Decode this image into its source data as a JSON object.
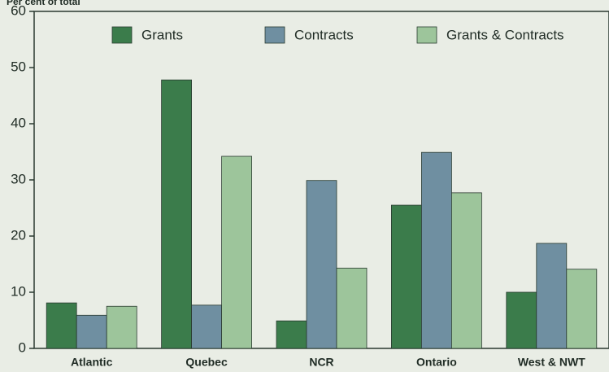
{
  "chart_data": {
    "type": "bar",
    "y_label": "Per cent of total",
    "categories": [
      "Atlantic",
      "Quebec",
      "NCR",
      "Ontario",
      "West & NWT"
    ],
    "series": [
      {
        "name": "Grants",
        "color": "#3b7c4b",
        "values": [
          8.1,
          47.8,
          4.9,
          25.5,
          10
        ]
      },
      {
        "name": "Contracts",
        "color": "#6f8fa1",
        "values": [
          5.9,
          7.7,
          29.9,
          34.9,
          18.7
        ]
      },
      {
        "name": "Grants & Contracts",
        "color": "#9dc59b",
        "values": [
          7.5,
          34.2,
          14.3,
          27.7,
          14.1
        ]
      }
    ],
    "ylim": [
      0,
      60
    ],
    "yticks": [
      0,
      10,
      20,
      30,
      40,
      50,
      60
    ],
    "legend": "top"
  }
}
